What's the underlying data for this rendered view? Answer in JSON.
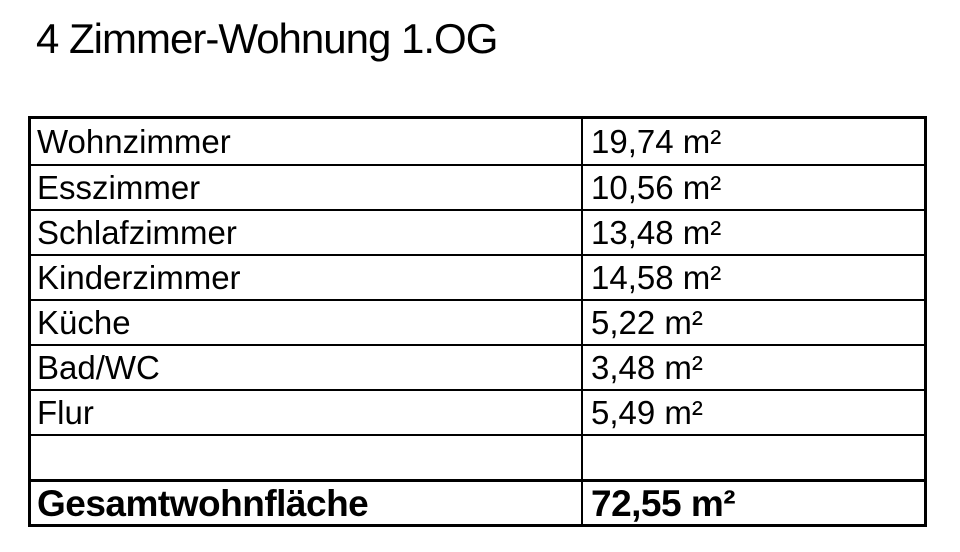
{
  "title": "4 Zimmer-Wohnung 1.OG",
  "table": {
    "rows": [
      {
        "label": "Wohnzimmer",
        "value": "19,74 m²"
      },
      {
        "label": "Esszimmer",
        "value": "10,56 m²"
      },
      {
        "label": "Schlafzimmer",
        "value": "13,48 m²"
      },
      {
        "label": "Kinderzimmer",
        "value": "14,58 m²"
      },
      {
        "label": "Küche",
        "value": "5,22 m²"
      },
      {
        "label": "Bad/WC",
        "value": "3,48 m²"
      },
      {
        "label": "Flur",
        "value": "5,49 m²"
      },
      {
        "label": "",
        "value": ""
      }
    ],
    "total_row": {
      "label": "Gesamtwohnfläche",
      "value": "72,55 m²"
    }
  },
  "colors": {
    "text": "#000000",
    "border": "#000000",
    "background": "#ffffff"
  }
}
